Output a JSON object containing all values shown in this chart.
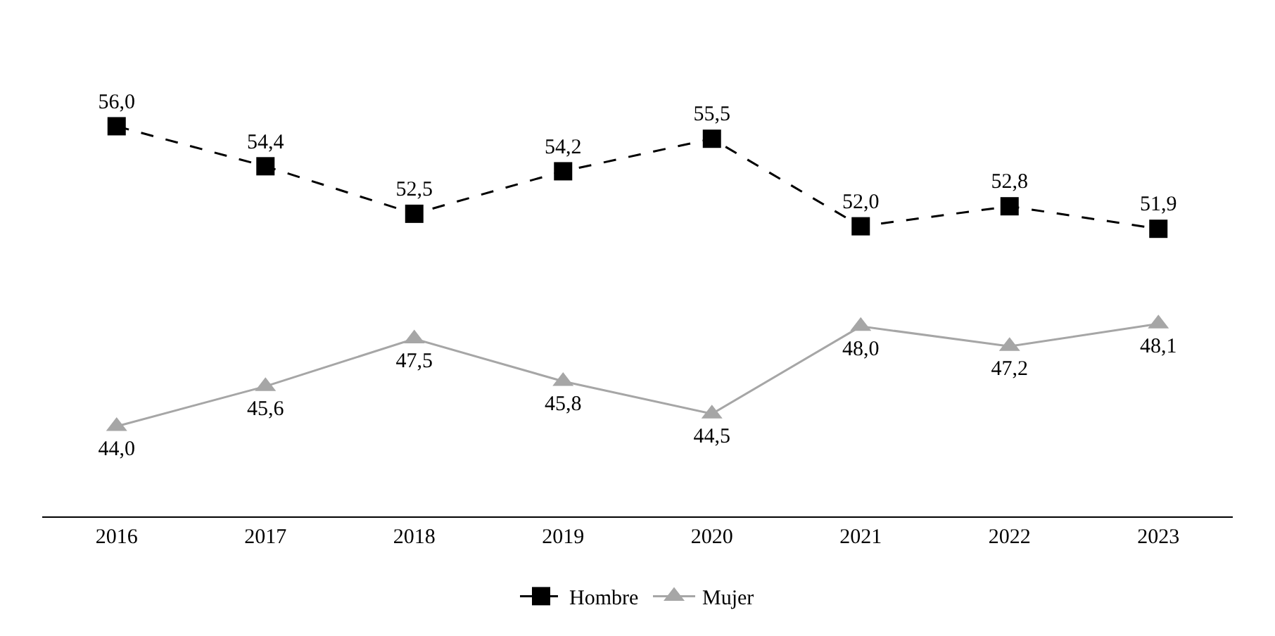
{
  "chart_data": {
    "type": "line",
    "categories": [
      "2016",
      "2017",
      "2018",
      "2019",
      "2020",
      "2021",
      "2022",
      "2023"
    ],
    "series": [
      {
        "name": "Hombre",
        "color": "#000000",
        "marker": "square",
        "line_style": "dashed",
        "values": [
          56.0,
          54.4,
          52.5,
          54.2,
          55.5,
          52.0,
          52.8,
          51.9
        ],
        "value_labels": [
          "56,0",
          "54,4",
          "52,5",
          "54,2",
          "55,5",
          "52,0",
          "52,8",
          "51,9"
        ]
      },
      {
        "name": "Mujer",
        "color": "#a6a6a6",
        "marker": "triangle",
        "line_style": "solid",
        "values": [
          44.0,
          45.6,
          47.5,
          45.8,
          44.5,
          48.0,
          47.2,
          48.1
        ],
        "value_labels": [
          "44,0",
          "45,6",
          "47,5",
          "45,8",
          "44,5",
          "48,0",
          "47,2",
          "48,1"
        ]
      }
    ],
    "legend": "bottom"
  }
}
